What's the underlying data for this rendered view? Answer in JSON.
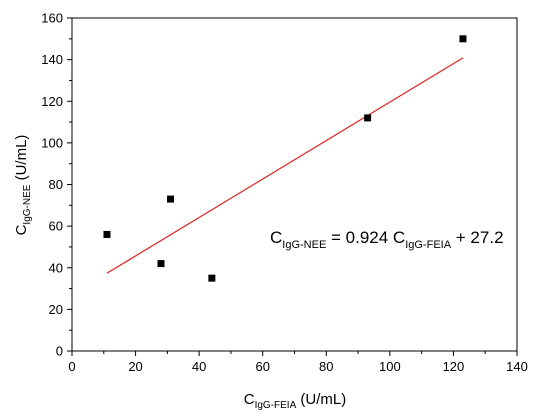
{
  "chart_data": {
    "type": "scatter",
    "xlabel": {
      "main": "C",
      "sub": "IgG-FEIA",
      "unit": " (U/mL)"
    },
    "ylabel": {
      "main": "C",
      "sub": "IgG-NEE",
      "unit": " (U/mL)"
    },
    "xlim": [
      0,
      140
    ],
    "ylim": [
      0,
      160
    ],
    "xticks": [
      0,
      20,
      40,
      60,
      80,
      100,
      120,
      140
    ],
    "yticks": [
      0,
      20,
      40,
      60,
      80,
      100,
      120,
      140,
      160
    ],
    "grid": false,
    "points": [
      {
        "x": 11,
        "y": 56
      },
      {
        "x": 28,
        "y": 42
      },
      {
        "x": 31,
        "y": 73
      },
      {
        "x": 44,
        "y": 35
      },
      {
        "x": 93,
        "y": 112
      },
      {
        "x": 123,
        "y": 150
      }
    ],
    "fit": {
      "slope": 0.924,
      "intercept": 27.2,
      "x_range": [
        11,
        123
      ],
      "color": "#e02020"
    },
    "annotation": {
      "p1": "C",
      "s1": "IgG-NEE",
      "p2": " = 0.924 C",
      "s2": "IgG-FEIA",
      "p3": " + 27.2"
    },
    "colors": {
      "points": "#000000",
      "axes": "#000000"
    }
  }
}
